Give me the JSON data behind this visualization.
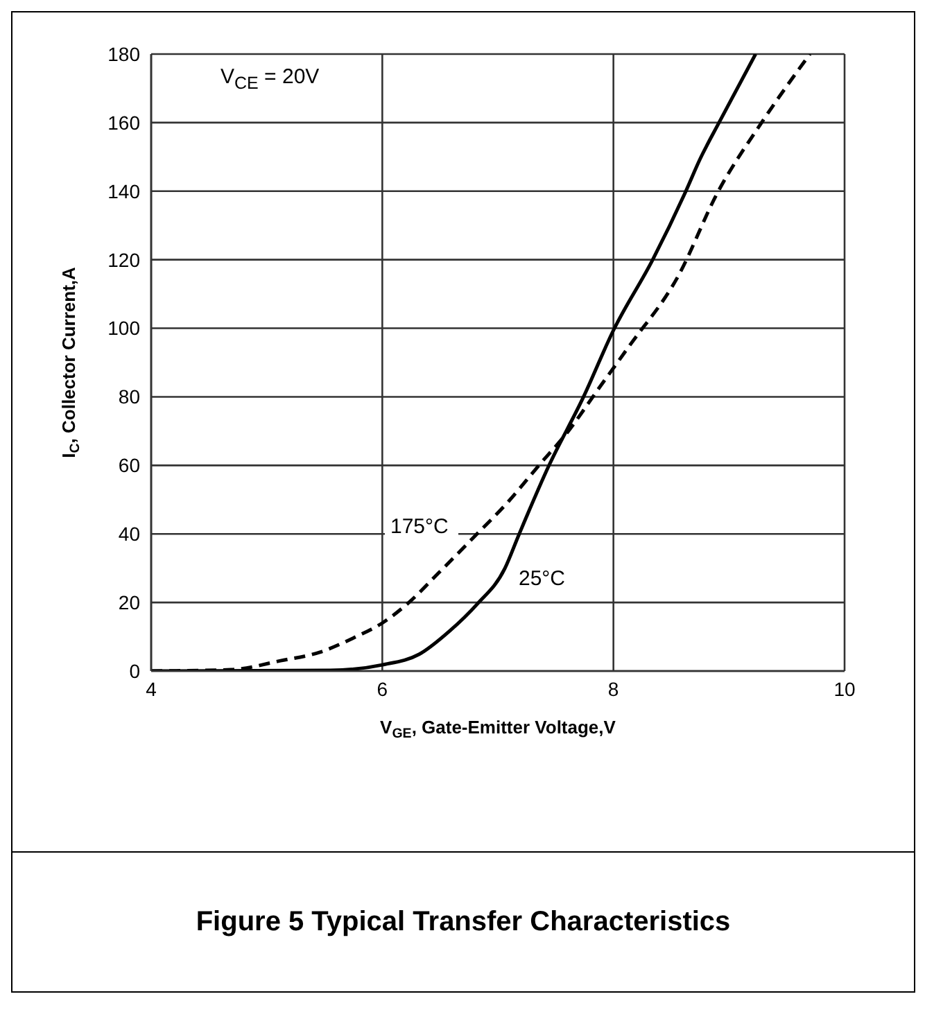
{
  "chart_data": {
    "type": "line",
    "title": "Figure 5 Typical Transfer Characteristics",
    "xlabel": "V$_{GE}$, Gate-Emitter Voltage,V",
    "ylabel": "I$_{C}$, Collector Current,A",
    "annotations": [
      "V$_{CE}$ = 20V"
    ],
    "xlim": [
      4,
      10
    ],
    "xticks": [
      4,
      6,
      8,
      10
    ],
    "ylim": [
      0,
      180
    ],
    "yticks": [
      0,
      20,
      40,
      60,
      80,
      100,
      120,
      140,
      160,
      180
    ],
    "grid": true,
    "series": [
      {
        "name": "25°C",
        "color": "#000000",
        "line_style": "solid",
        "x": [
          4,
          5.55,
          6,
          6.32,
          6.58,
          6.82,
          7.06,
          7.18,
          7.44,
          7.74,
          8,
          8.34,
          8.62,
          8.75,
          8.92,
          9.23
        ],
        "values": [
          0,
          0.2,
          1.8,
          4.9,
          11.6,
          19.5,
          29.9,
          39.6,
          59.8,
          79.9,
          99.4,
          120,
          139.5,
          149.4,
          160.4,
          180
        ]
      },
      {
        "name": "175°C",
        "color": "#000000",
        "line_style": "dashed",
        "x": [
          4,
          4.69,
          5.12,
          5.46,
          5.76,
          6,
          6.23,
          6.49,
          6.79,
          7.09,
          7.35,
          7.61,
          7.87,
          8.13,
          8.56,
          8.9,
          9.29,
          9.7
        ],
        "values": [
          0,
          0.4,
          3,
          5.5,
          9.8,
          14,
          20,
          28.7,
          39,
          49.4,
          59.8,
          70,
          82.3,
          94.5,
          115.2,
          139.5,
          160.4,
          180
        ]
      }
    ]
  }
}
